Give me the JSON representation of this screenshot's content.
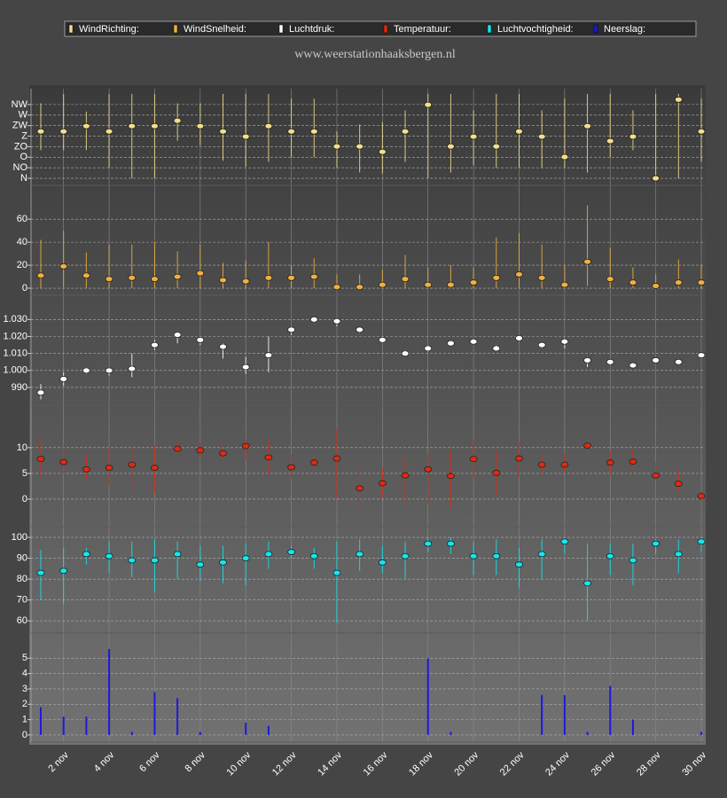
{
  "chart_data": [
    {
      "type": "errorbar",
      "title": "www.weerstationhaaksbergen.nl",
      "series": [
        {
          "name": "WindRichting:",
          "color": "#f3df8c",
          "values": [
            200,
            200,
            223,
            200,
            223,
            223,
            246,
            223,
            200,
            178,
            223,
            200,
            200,
            136,
            136,
            113,
            200,
            314,
            136,
            178,
            136,
            200,
            178,
            91,
            223,
            159,
            178,
            0,
            336,
            200
          ],
          "low": [
            120,
            120,
            120,
            45,
            0,
            0,
            160,
            140,
            75,
            50,
            70,
            90,
            90,
            45,
            25,
            20,
            70,
            0,
            25,
            55,
            45,
            45,
            45,
            45,
            25,
            90,
            120,
            0,
            0,
            70
          ],
          "high": [
            320,
            360,
            285,
            360,
            360,
            360,
            320,
            320,
            360,
            360,
            360,
            340,
            340,
            200,
            230,
            240,
            290,
            360,
            360,
            290,
            360,
            360,
            290,
            340,
            360,
            360,
            290,
            360,
            360,
            340
          ]
        }
      ],
      "ylim": [
        -22.5,
        360
      ],
      "yticks": [
        {
          "value": 0,
          "label": "N"
        },
        {
          "value": 45,
          "label": "NO"
        },
        {
          "value": 90,
          "label": "O"
        },
        {
          "value": 135,
          "label": "ZO"
        },
        {
          "value": 180,
          "label": "Z"
        },
        {
          "value": 225,
          "label": "ZW"
        },
        {
          "value": 270,
          "label": "W"
        },
        {
          "value": 315,
          "label": "NW"
        }
      ]
    },
    {
      "type": "errorbar",
      "series": [
        {
          "name": "WindSnelheid:",
          "color": "#f0b040",
          "values": [
            11,
            19,
            11,
            8,
            9,
            8,
            10,
            13,
            7,
            6,
            9,
            9,
            10,
            1,
            1,
            3,
            8,
            3,
            3,
            5,
            9,
            12,
            9,
            3,
            23,
            8,
            5,
            2,
            5,
            5
          ],
          "low": [
            0,
            1,
            0,
            0,
            0,
            0,
            0,
            0,
            0,
            0,
            0,
            0,
            0,
            0,
            0,
            0,
            0,
            0,
            0,
            0,
            0,
            0,
            0,
            0,
            2,
            0,
            0,
            0,
            0,
            0
          ],
          "high": [
            42,
            50,
            31,
            38,
            38,
            40,
            32,
            38,
            22,
            24,
            40,
            20,
            26,
            12,
            12,
            16,
            29,
            18,
            20,
            18,
            44,
            48,
            38,
            20,
            72,
            35,
            18,
            12,
            25,
            20
          ]
        }
      ],
      "ylim": [
        -4.6,
        74
      ],
      "yticks": [
        0,
        20,
        40,
        60
      ]
    },
    {
      "type": "errorbar",
      "series": [
        {
          "name": "Luchtdruk:",
          "color": "#ffffff",
          "values": [
            987,
            995,
            1000,
            1000,
            1001,
            1015,
            1021,
            1018,
            1014,
            1002,
            1009,
            1024,
            1030,
            1029,
            1024,
            1018,
            1010,
            1013,
            1016,
            1017,
            1013,
            1019,
            1015,
            1017,
            1006,
            1005,
            1003,
            1006,
            1005,
            1009
          ],
          "low": [
            983,
            991,
            998,
            997,
            996,
            1012,
            1016,
            1015,
            1007,
            998,
            999,
            1021,
            1028,
            1026,
            1022,
            1016,
            1009,
            1011,
            1015,
            1016,
            1012,
            1017,
            1013,
            1013,
            1002,
            1003,
            1002,
            1005,
            1005,
            1007
          ],
          "high": [
            992,
            999,
            1002,
            1002,
            1010,
            1018,
            1023,
            1020,
            1016,
            1008,
            1020,
            1026,
            1031,
            1030,
            1025,
            1020,
            1012,
            1015,
            1017,
            1018,
            1015,
            1020,
            1016,
            1019,
            1008,
            1006,
            1004,
            1007,
            1006,
            1010
          ]
        }
      ],
      "ylim": [
        980.6,
        1038
      ],
      "yticks": [
        990,
        {
          "value": 1000,
          "label": "1.000"
        },
        {
          "value": 1010,
          "label": "1.010"
        },
        {
          "value": 1020,
          "label": "1.020"
        },
        {
          "value": 1030,
          "label": "1.030"
        }
      ]
    },
    {
      "type": "errorbar",
      "series": [
        {
          "name": "Temperatuur:",
          "color": "#e02a10",
          "values": [
            7.8,
            7.2,
            5.8,
            6.1,
            6.7,
            6.1,
            9.8,
            9.5,
            8.9,
            10.3,
            8.1,
            6.2,
            7.1,
            7.9,
            2.1,
            3.1,
            4.6,
            5.8,
            4.5,
            7.8,
            5.1,
            7.9,
            6.7,
            6.7,
            10.4,
            7.1,
            7.3,
            4.6,
            3.0,
            0.6
          ],
          "low": [
            4.5,
            4.8,
            3.9,
            2.5,
            2.1,
            1.2,
            8.5,
            8.0,
            7.6,
            7.8,
            4.8,
            3.9,
            6.5,
            0.2,
            -2.5,
            0.3,
            -0.8,
            -0.9,
            -1.6,
            4.2,
            0.8,
            4.4,
            4.7,
            5.0,
            7.5,
            4.8,
            5.5,
            3.8,
            1.6,
            -0.4
          ],
          "high": [
            11.5,
            10.2,
            8.5,
            10.2,
            10.5,
            10.5,
            11.2,
            11.0,
            10.3,
            11.6,
            11.8,
            8.8,
            8.1,
            13.6,
            5.7,
            6.1,
            8.3,
            8.9,
            9.6,
            11.6,
            9.4,
            11.1,
            8.6,
            8.9,
            12.3,
            9.3,
            9.8,
            7.1,
            5.4,
            1.5
          ]
        }
      ],
      "ylim": [
        -5,
        16
      ],
      "yticks": [
        0,
        5,
        10
      ]
    },
    {
      "type": "errorbar",
      "series": [
        {
          "name": "Luchtvochtigheid:",
          "color": "#10e8f0",
          "values": [
            83,
            84,
            92,
            91,
            89,
            89,
            92,
            87,
            88,
            90,
            92,
            93,
            91,
            83,
            92,
            88,
            91,
            97,
            97,
            91,
            91,
            87,
            92,
            98,
            78,
            91,
            89,
            97,
            92,
            98
          ],
          "low": [
            70,
            68,
            87,
            83,
            81,
            74,
            80,
            79,
            78,
            77,
            85,
            90,
            85,
            59,
            84,
            83,
            80,
            93,
            92,
            82,
            82,
            76,
            80,
            92,
            60,
            82,
            77,
            92,
            83,
            93
          ],
          "high": [
            94,
            95,
            95,
            98,
            98,
            99,
            98,
            96,
            96,
            97,
            98,
            96,
            95,
            98,
            99,
            96,
            98,
            100,
            100,
            98,
            99,
            95,
            99,
            100,
            97,
            97,
            97,
            99,
            99,
            100
          ]
        }
      ],
      "ylim": [
        55,
        104.7
      ],
      "yticks": [
        60,
        70,
        80,
        90,
        100
      ]
    },
    {
      "type": "bar",
      "series": [
        {
          "name": "Neerslag:",
          "color": "#1a1ae0",
          "values": [
            1.8,
            1.2,
            1.2,
            5.6,
            0.2,
            2.8,
            2.4,
            0.2,
            0,
            0.8,
            0.6,
            0,
            0,
            0,
            0,
            0,
            0,
            5.0,
            0.2,
            0,
            0,
            0,
            2.6,
            2.6,
            0.2,
            3.2,
            1.0,
            0,
            0,
            0.2
          ]
        }
      ],
      "ylim": [
        -0.35,
        6
      ],
      "yticks": [
        0,
        1,
        2,
        3,
        4,
        5
      ],
      "categories": [
        null,
        "2 nov",
        null,
        "4 nov",
        null,
        "6 nov",
        null,
        "8 nov",
        null,
        "10 nov",
        null,
        "12 nov",
        null,
        "14 nov",
        null,
        "16 nov",
        null,
        "18 nov",
        null,
        "20 nov",
        null,
        "22 nov",
        null,
        "24 nov",
        null,
        "26 nov",
        null,
        "28 nov",
        null,
        "30 nov"
      ]
    }
  ]
}
